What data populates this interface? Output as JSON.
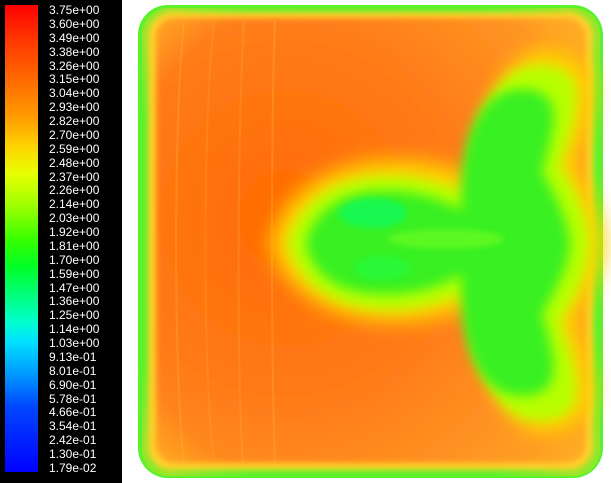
{
  "legend": {
    "labels": [
      "3.75e+00",
      "3.60e+00",
      "3.49e+00",
      "3.38e+00",
      "3.26e+00",
      "3.15e+00",
      "3.04e+00",
      "2.93e+00",
      "2.82e+00",
      "2.70e+00",
      "2.59e+00",
      "2.48e+00",
      "2.37e+00",
      "2.26e+00",
      "2.14e+00",
      "2.03e+00",
      "1.92e+00",
      "1.81e+00",
      "1.70e+00",
      "1.59e+00",
      "1.47e+00",
      "1.36e+00",
      "1.25e+00",
      "1.14e+00",
      "1.03e+00",
      "9.13e-01",
      "8.01e-01",
      "6.90e-01",
      "5.78e-01",
      "4.66e-01",
      "3.54e-01",
      "2.42e-01",
      "1.30e-01",
      "1.79e-02"
    ],
    "colors": {
      "max": "#ff0000",
      "high": "#ff6a00",
      "mid": "#3aff00",
      "low": "#00e2ff",
      "min": "#0000ff",
      "background": "#000000",
      "text": "#ffffff"
    }
  },
  "plot": {
    "colors": {
      "outer_edge": "#59f22b",
      "inner_edge": "#ffd12a",
      "base_field": "#ff7b19",
      "hot_core": "#ff6a00",
      "plume_outer": "#ffd100",
      "plume_mid": "#b8ff00",
      "plume_core": "#39f020"
    }
  }
}
